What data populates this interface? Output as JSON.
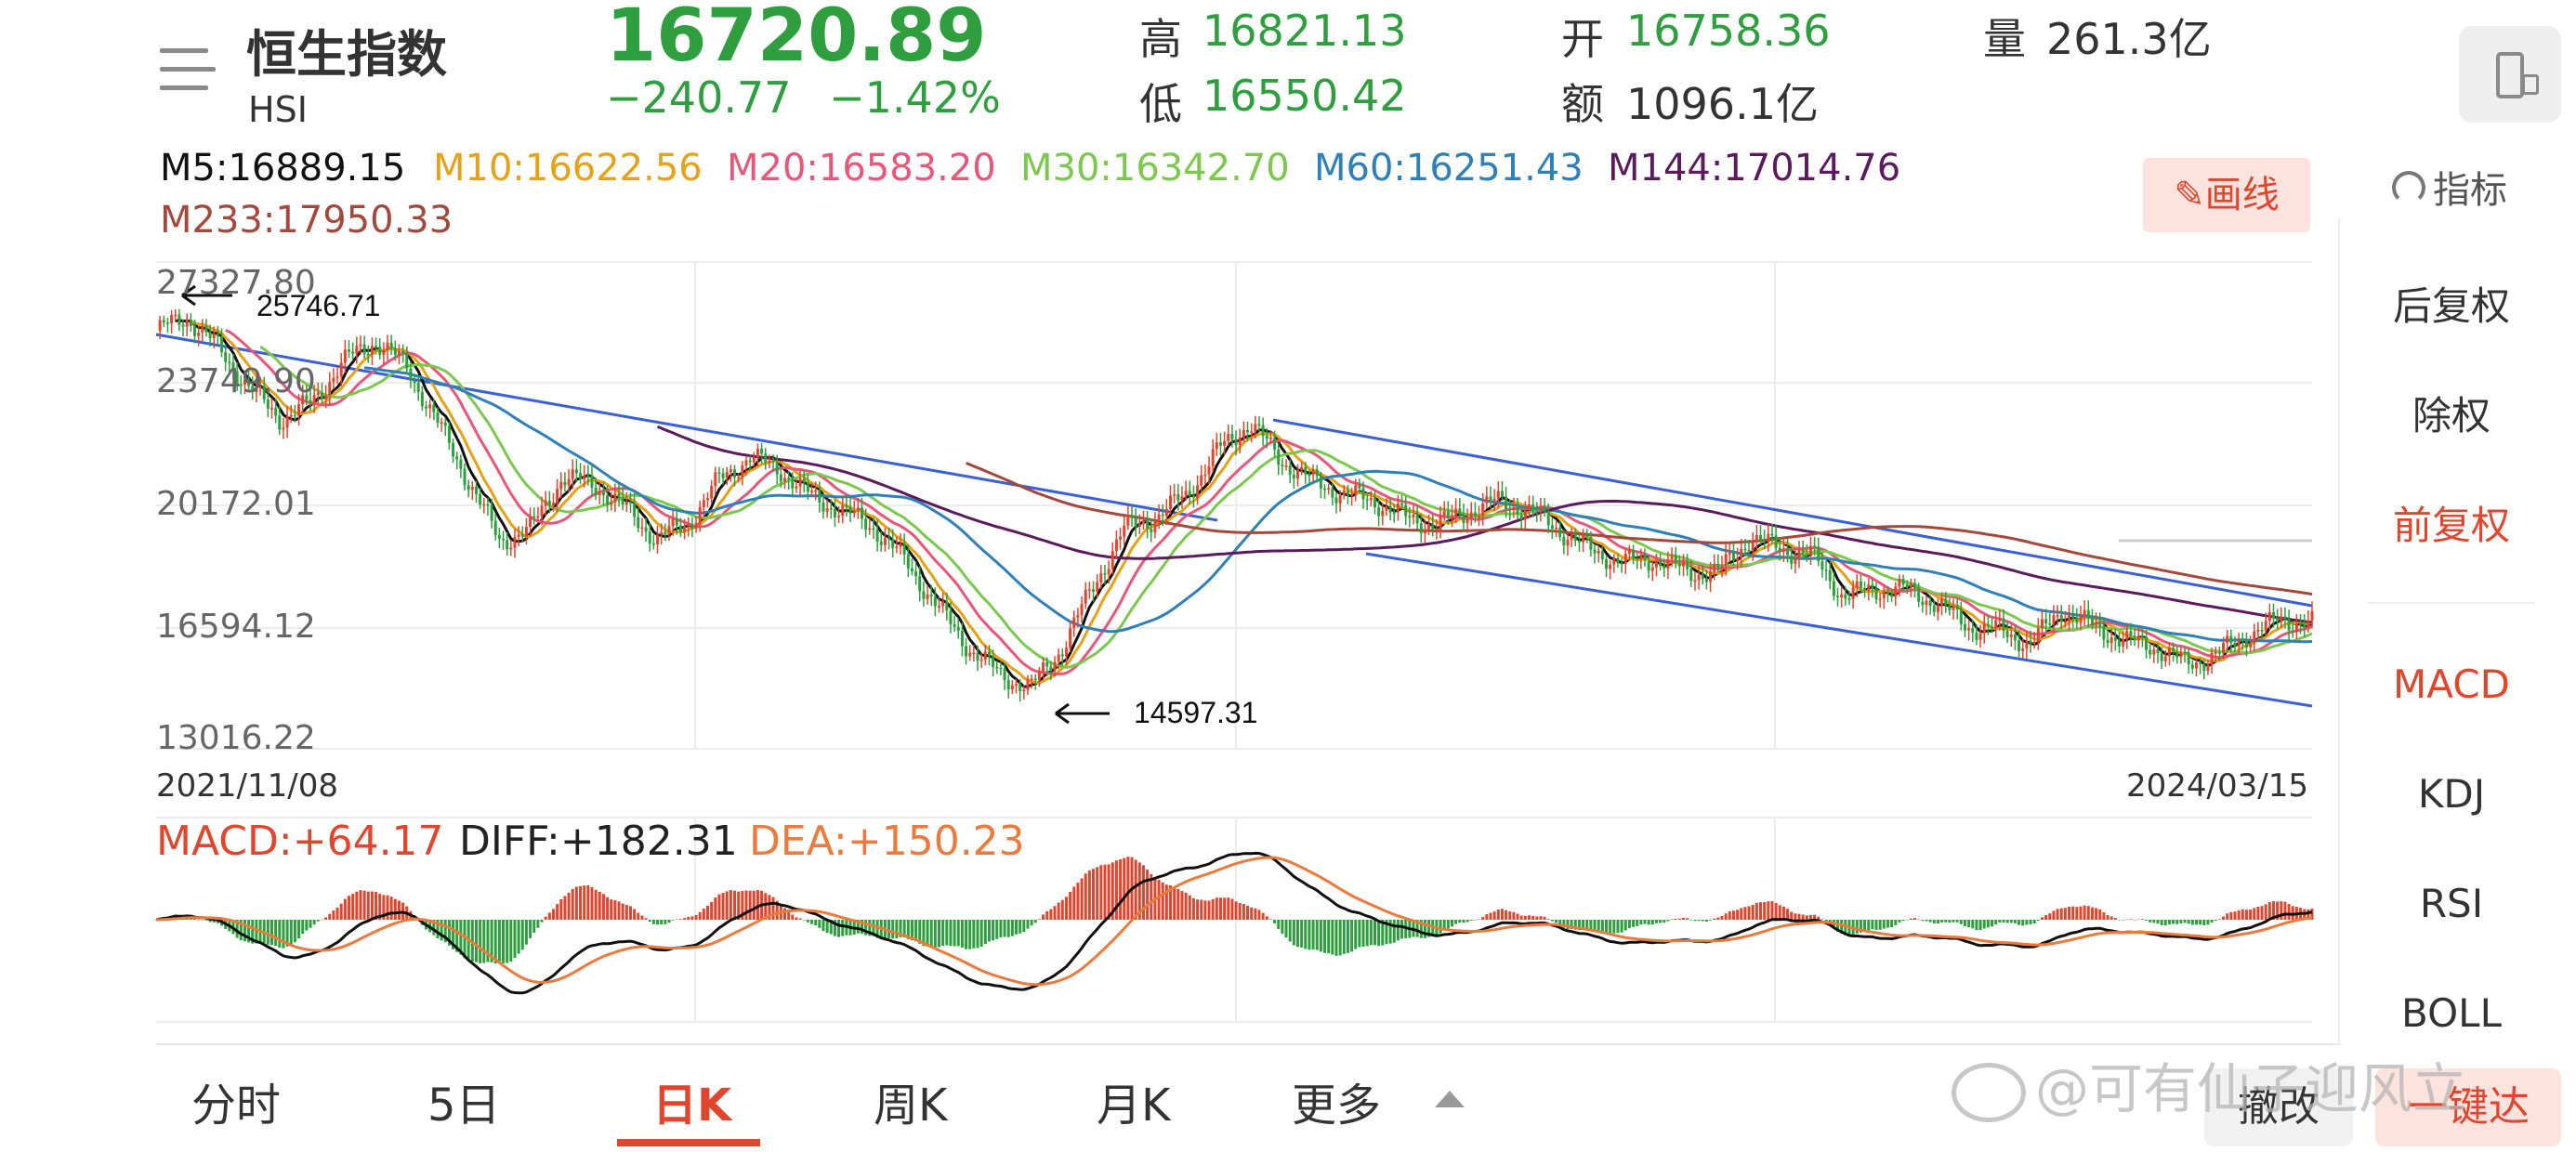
{
  "header": {
    "title": "恒生指数",
    "code": "HSI",
    "price": "16720.89",
    "change": "−240.77",
    "change_pct": "−1.42%",
    "high_label": "高",
    "high": "16821.13",
    "low_label": "低",
    "low": "16550.42",
    "open_label": "开",
    "open": "16758.36",
    "amount_label": "额",
    "amount": "1096.1亿",
    "volume_label": "量",
    "volume": "261.3亿"
  },
  "ma_legend": [
    {
      "label": "M5:16889.15",
      "color": "#111111"
    },
    {
      "label": "M10:16622.56",
      "color": "#e6a117"
    },
    {
      "label": "M20:16583.20",
      "color": "#e8567a"
    },
    {
      "label": "M30:16342.70",
      "color": "#7cc84e"
    },
    {
      "label": "M60:16251.43",
      "color": "#2f7fb8"
    },
    {
      "label": "M144:17014.76",
      "color": "#5a1a5c"
    },
    {
      "label": "M233:17950.33",
      "color": "#a4483c"
    }
  ],
  "toolbar": {
    "draw_label": "画线",
    "indicator_label": "指标"
  },
  "side_menu": {
    "items": [
      "后复权",
      "除权",
      "前复权",
      "MACD",
      "KDJ",
      "RSI",
      "BOLL"
    ],
    "active": [
      "前复权",
      "MACD"
    ]
  },
  "chart_data": {
    "type": "candlestick",
    "y_ticks": [
      "27327.80",
      "23749.90",
      "20172.01",
      "16594.12",
      "13016.22"
    ],
    "date_start": "2021/11/08",
    "date_end": "2024/03/15",
    "annotations": [
      "25746.71",
      "14597.31"
    ],
    "close_path": [
      25300,
      25700,
      24800,
      23600,
      22700,
      23200,
      24400,
      25000,
      24300,
      22600,
      20900,
      19100,
      19500,
      21000,
      20800,
      20100,
      19200,
      19600,
      20900,
      21600,
      21200,
      20400,
      20000,
      19500,
      18500,
      17200,
      16000,
      15200,
      14800,
      16000,
      17800,
      19500,
      19800,
      20500,
      21800,
      22600,
      21500,
      20900,
      20500,
      20300,
      19800,
      19600,
      20000,
      20300,
      20000,
      19400,
      18800,
      18500,
      18600,
      18200,
      18200,
      19200,
      18900,
      18700,
      17500,
      17700,
      17700,
      17300,
      16600,
      16500,
      16100,
      17100,
      16600,
      16200,
      16000,
      15500,
      15800,
      16400,
      16800,
      16720
    ],
    "macd": {
      "MACD": "+64.17",
      "DIFF": "+182.31",
      "DEA": "+150.23"
    }
  },
  "tabs": [
    "分时",
    "5日",
    "日K",
    "周K",
    "月K",
    "更多"
  ],
  "active_tab": "日K",
  "bottom_actions": [
    "撤改",
    "一键达"
  ],
  "watermark": "@可有仙子迎风立"
}
